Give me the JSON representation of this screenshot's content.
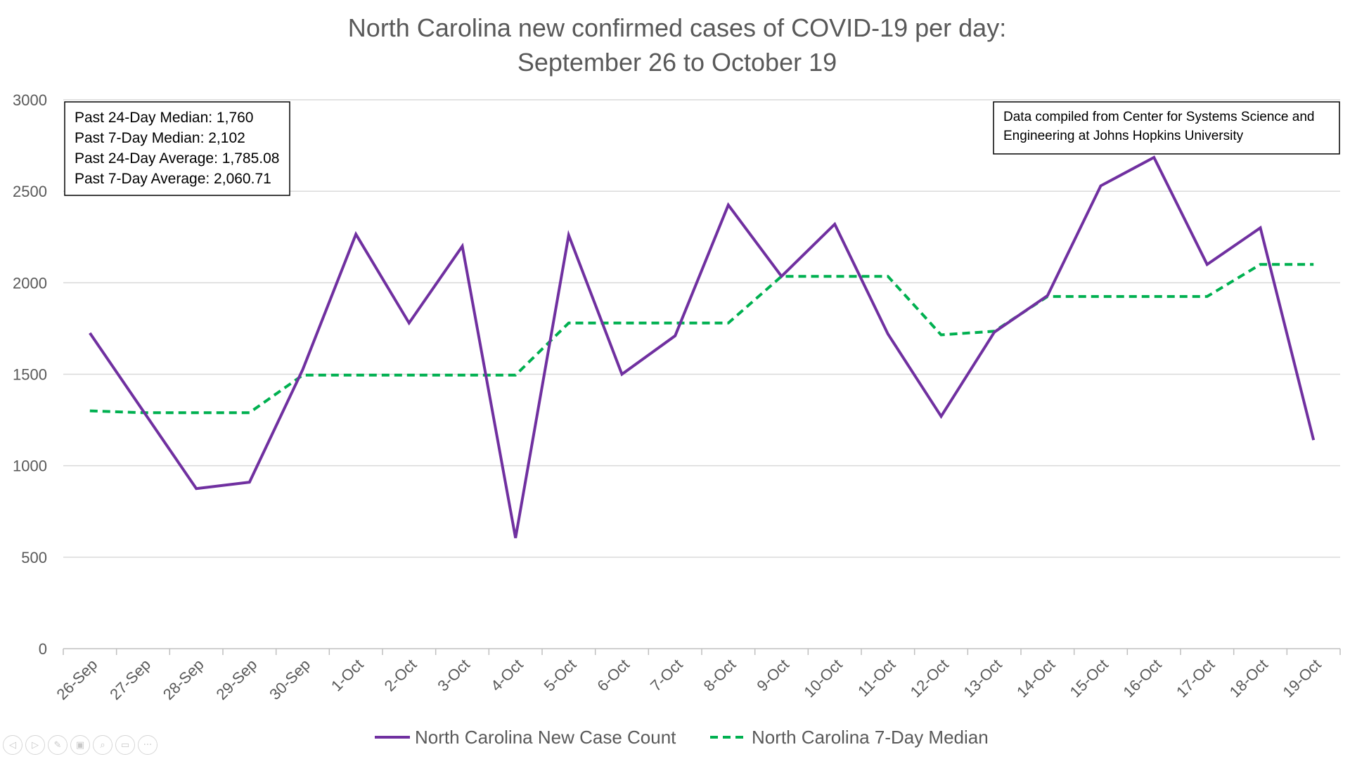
{
  "chart_data": {
    "type": "line",
    "title": [
      "North Carolina new confirmed cases of COVID-19 per day:",
      "September 26 to October 19"
    ],
    "categories": [
      "26-Sep",
      "27-Sep",
      "28-Sep",
      "29-Sep",
      "30-Sep",
      "1-Oct",
      "2-Oct",
      "3-Oct",
      "4-Oct",
      "5-Oct",
      "6-Oct",
      "7-Oct",
      "8-Oct",
      "9-Oct",
      "10-Oct",
      "11-Oct",
      "12-Oct",
      "13-Oct",
      "14-Oct",
      "15-Oct",
      "16-Oct",
      "17-Oct",
      "18-Oct",
      "19-Oct"
    ],
    "series": [
      {
        "name": "North Carolina New Case Count",
        "color": "#7030a0",
        "style": "solid",
        "values": [
          1725,
          1300,
          875,
          910,
          1525,
          2265,
          1780,
          2200,
          605,
          2260,
          1500,
          1710,
          2425,
          2035,
          2320,
          1720,
          1270,
          1730,
          1930,
          2530,
          2685,
          2100,
          2300,
          1140
        ]
      },
      {
        "name": "North Carolina 7-Day Median",
        "color": "#00b050",
        "style": "dashed",
        "values": [
          1300,
          1290,
          1290,
          1290,
          1495,
          1495,
          1495,
          1495,
          1495,
          1780,
          1780,
          1780,
          1780,
          2035,
          2035,
          2035,
          1715,
          1735,
          1925,
          1925,
          1925,
          1925,
          2100,
          2100
        ]
      }
    ],
    "ylim": [
      0,
      3000
    ],
    "yticks": [
      0,
      500,
      1000,
      1500,
      2000,
      2500,
      3000
    ],
    "grid": true,
    "legend_position": "bottom",
    "annotations": {
      "stats_box": [
        "Past 24-Day Median: 1,760",
        "Past 7-Day Median: 2,102",
        "Past 24-Day Average: 1,785.08",
        "Past 7-Day Average: 2,060.71"
      ],
      "source_box": [
        "Data compiled from Center for Systems Science and",
        "Engineering at Johns Hopkins University"
      ]
    }
  },
  "toolbar": {
    "icons": [
      "prev-icon",
      "next-icon",
      "pen-icon",
      "slides-icon",
      "zoom-icon",
      "subtitles-icon",
      "more-icon"
    ],
    "glyphs": [
      "◁",
      "▷",
      "✎",
      "▣",
      "⌕",
      "▭",
      "···"
    ]
  }
}
